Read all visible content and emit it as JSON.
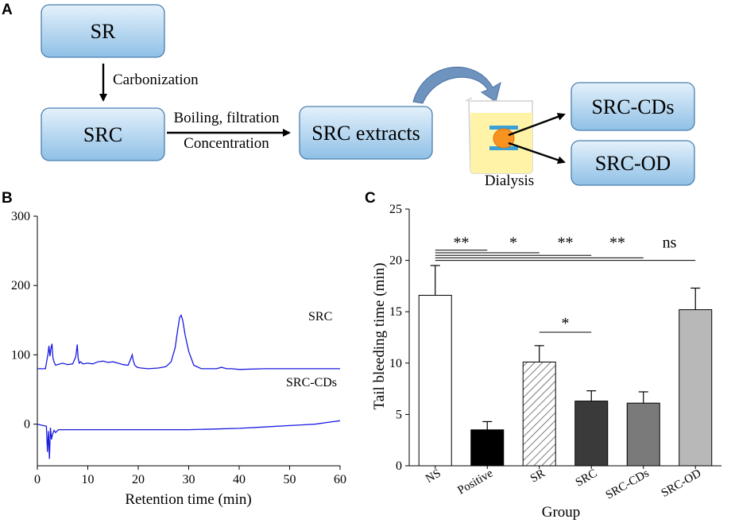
{
  "panels": {
    "a": "A",
    "b": "B",
    "c": "C"
  },
  "flow": {
    "sr": "SR",
    "carbonization": "Carbonization",
    "src": "SRC",
    "boiling": "Boiling, filtration",
    "concentration": "Concentration",
    "extracts": "SRC extracts",
    "dialysis": "Dialysis",
    "src_cds": "SRC-CDs",
    "src_od": "SRC-OD"
  },
  "colors": {
    "box_fill_top": "#e4f1fb",
    "box_fill_bottom": "#8fc0e6",
    "box_stroke": "#4a7fb0",
    "curved_arrow": "#6f93bf",
    "beaker_liquid": "#fff3a8",
    "membrane": "#3aa0d8",
    "particle": "#f7931e",
    "trace": "#1a1adf",
    "bar_black": "#000000",
    "bar_dark": "#3a3a3a",
    "bar_mid": "#7a7a7a",
    "bar_light": "#b8b8b8"
  },
  "chart_data": [
    {
      "type": "line",
      "panel": "B",
      "xlabel": "Retention time (min)",
      "ylabel": "",
      "xlim": [
        0,
        60
      ],
      "ylim": [
        -60,
        300
      ],
      "xticks": [
        "0",
        "10",
        "20",
        "30",
        "40",
        "50",
        "60"
      ],
      "yticks": [
        "0",
        "100",
        "200",
        "300"
      ],
      "series": [
        {
          "name": "SRC",
          "x": [
            0,
            1.6,
            1.9,
            2.1,
            2.3,
            2.5,
            2.7,
            2.9,
            3.1,
            3.3,
            3.6,
            4.0,
            5.0,
            6.0,
            7.0,
            7.6,
            7.9,
            8.1,
            8.3,
            8.6,
            9.0,
            10,
            11,
            12,
            13,
            14,
            15,
            16,
            17,
            18,
            18.4,
            18.8,
            19.0,
            19.3,
            19.8,
            20.5,
            22,
            24,
            25.5,
            26.5,
            27.3,
            27.8,
            28.2,
            28.5,
            28.8,
            29.3,
            30.0,
            31.0,
            32.5,
            34,
            35.5,
            36.5,
            37.5,
            38.5,
            40,
            45,
            50,
            55,
            60
          ],
          "values": [
            80,
            80,
            93,
            100,
            113,
            98,
            109,
            116,
            95,
            90,
            85,
            86,
            88,
            86,
            87,
            97,
            115,
            95,
            88,
            90,
            87,
            88,
            87,
            90,
            91,
            89,
            90,
            88,
            86,
            85,
            92,
            100,
            92,
            85,
            82,
            81,
            80,
            81,
            83,
            90,
            110,
            135,
            154,
            157,
            150,
            128,
            105,
            85,
            80,
            80,
            80,
            82,
            80,
            80,
            79,
            80,
            80,
            80,
            80
          ]
        },
        {
          "name": "SRC-CDs",
          "x": [
            0,
            1.8,
            2.0,
            2.2,
            2.4,
            2.6,
            2.8,
            3.0,
            3.3,
            3.6,
            4.2,
            6,
            10,
            15,
            20,
            25,
            30,
            35,
            40,
            45,
            50,
            55,
            58,
            60
          ],
          "values": [
            0,
            -3,
            -40,
            -10,
            -50,
            -5,
            -22,
            -15,
            -9,
            -12,
            -8,
            -8,
            -8,
            -8,
            -8,
            -8,
            -8,
            -7,
            -6,
            -4,
            -2,
            0,
            3,
            5
          ]
        }
      ]
    },
    {
      "type": "bar",
      "panel": "C",
      "xlabel": "Group",
      "ylabel": "Tail bleeding time (min)",
      "ylim": [
        0,
        25
      ],
      "yticks": [
        "0",
        "5",
        "10",
        "15",
        "20",
        "25"
      ],
      "categories": [
        "NS",
        "Positive",
        "SR",
        "SRC",
        "SRC-CDs",
        "SRC-OD"
      ],
      "values": [
        16.6,
        3.5,
        10.1,
        6.3,
        6.1,
        15.2
      ],
      "errors": [
        2.9,
        0.8,
        1.6,
        1.0,
        1.1,
        2.1
      ],
      "bar_styles": [
        "white",
        "black",
        "hatched",
        "dark",
        "mid",
        "light"
      ],
      "significance": [
        {
          "from": "NS",
          "to": "Positive",
          "label": "**"
        },
        {
          "from": "NS",
          "to": "SR",
          "label": "*"
        },
        {
          "from": "NS",
          "to": "SRC",
          "label": "**"
        },
        {
          "from": "NS",
          "to": "SRC-CDs",
          "label": "**"
        },
        {
          "from": "NS",
          "to": "SRC-OD",
          "label": "ns"
        },
        {
          "from": "SR",
          "to": "SRC",
          "label": "*"
        }
      ]
    }
  ]
}
